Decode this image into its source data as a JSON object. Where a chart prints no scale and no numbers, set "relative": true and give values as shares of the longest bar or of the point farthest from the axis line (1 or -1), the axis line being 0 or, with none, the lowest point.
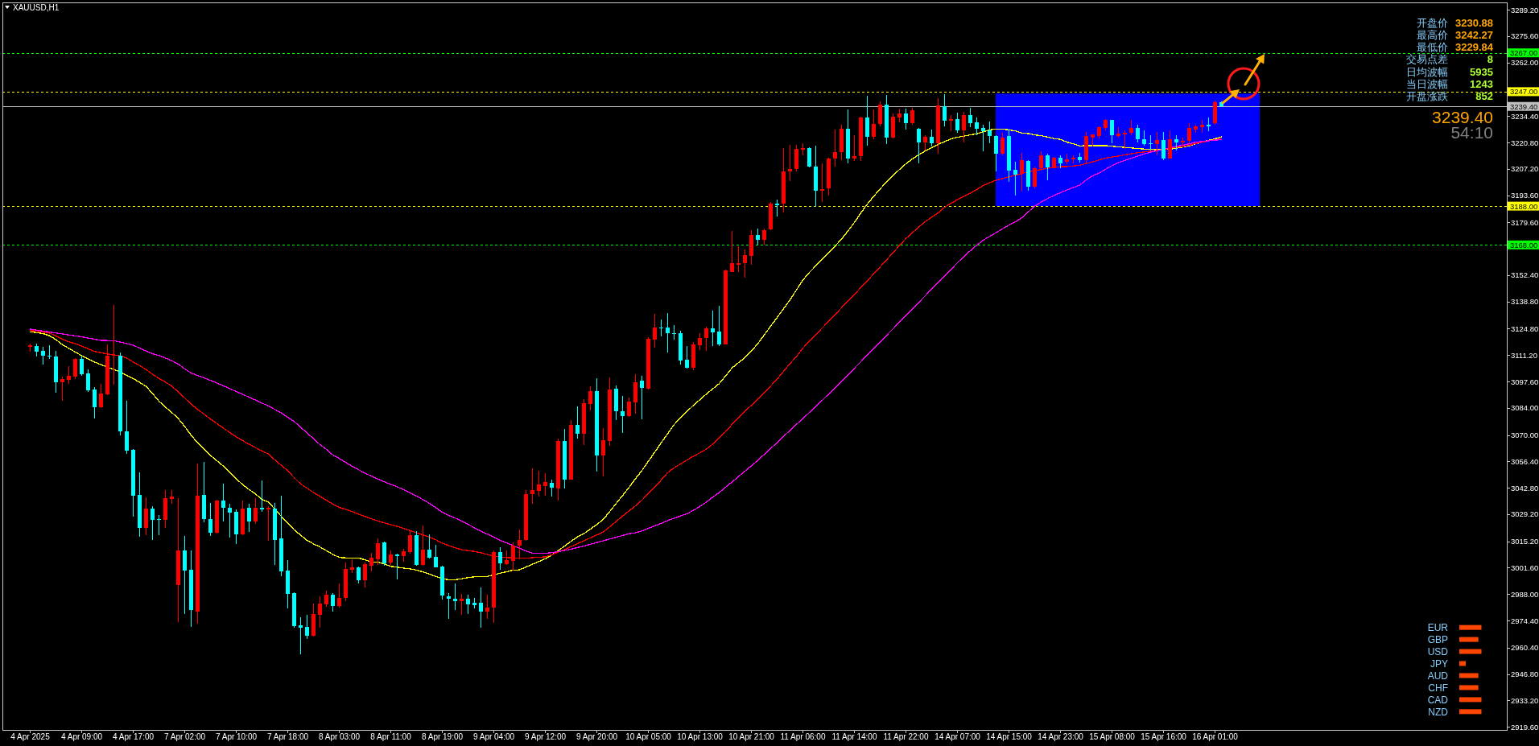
{
  "chart_data": [
    {
      "type": "candlestick",
      "title": "XAUUSD,H1",
      "categories": [
        "4 Apr 2025",
        null,
        null,
        null,
        null,
        null,
        null,
        null,
        "4 Apr 09:00",
        null,
        null,
        null,
        null,
        null,
        null,
        null,
        "4 Apr 17:00",
        null,
        null,
        null,
        null,
        null,
        null,
        null,
        "7 Apr 02:00",
        null,
        null,
        null,
        null,
        null,
        null,
        null,
        "7 Apr 10:00",
        null,
        null,
        null,
        null,
        null,
        null,
        null,
        "7 Apr 18:00",
        null,
        null,
        null,
        null,
        null,
        null,
        null,
        "8 Apr 03:00",
        null,
        null,
        null,
        null,
        null,
        null,
        null,
        "8 Apr 11:00",
        null,
        null,
        null,
        null,
        null,
        null,
        null,
        "8 Apr 19:00",
        null,
        null,
        null,
        null,
        null,
        null,
        null,
        "9 Apr 04:00",
        null,
        null,
        null,
        null,
        null,
        null,
        null,
        "9 Apr 12:00",
        null,
        null,
        null,
        null,
        null,
        null,
        null,
        "9 Apr 20:00",
        null,
        null,
        null,
        null,
        null,
        null,
        null,
        "10 Apr 05:00",
        null,
        null,
        null,
        null,
        null,
        null,
        null,
        "10 Apr 13:00",
        null,
        null,
        null,
        null,
        null,
        null,
        null,
        "10 Apr 21:00",
        null,
        null,
        null,
        null,
        null,
        null,
        null,
        "11 Apr 06:00",
        null,
        null,
        null,
        null,
        null,
        null,
        null,
        "11 Apr 14:00",
        null,
        null,
        null,
        null,
        null,
        null,
        null,
        "11 Apr 22:00",
        null,
        null,
        null,
        null,
        null,
        null,
        null,
        "14 Apr 07:00",
        null,
        null,
        null,
        null,
        null,
        null,
        null,
        "14 Apr 15:00",
        null,
        null,
        null,
        null,
        null,
        null,
        null,
        "14 Apr 23:00",
        null,
        null,
        null,
        null,
        null,
        null,
        null,
        "15 Apr 08:00",
        null,
        null,
        null,
        null,
        null,
        null,
        null,
        "15 Apr 16:00",
        null,
        null,
        null,
        null,
        null,
        null,
        null,
        "16 Apr 01:00",
        null
      ],
      "ohlc": [
        [
          3115.5,
          3117.2,
          3112.8,
          3116.3
        ],
        [
          3116.0,
          3117.0,
          3110.3,
          3113.1
        ],
        [
          3113.5,
          3115.6,
          3106.2,
          3110.8
        ],
        [
          3111.0,
          3116.3,
          3109.4,
          3110.3
        ],
        [
          3110.6,
          3113.4,
          3091.7,
          3097.0
        ],
        [
          3097.0,
          3100.0,
          3087.6,
          3099.0
        ],
        [
          3098.6,
          3105.6,
          3096.5,
          3100.7
        ],
        [
          3100.3,
          3109.6,
          3099.0,
          3109.4
        ],
        [
          3109.4,
          3110.8,
          3100.7,
          3101.5
        ],
        [
          3101.9,
          3104.0,
          3092.4,
          3093.2
        ],
        [
          3093.6,
          3094.9,
          3078.7,
          3084.5
        ],
        [
          3084.2,
          3096.5,
          3083.8,
          3091.6
        ],
        [
          3091.1,
          3116.7,
          3090.7,
          3111.0
        ],
        [
          3111.0,
          3137.0,
          3095.8,
          3111.4
        ],
        [
          3111.0,
          3112.6,
          3070.0,
          3071.8
        ],
        [
          3072.1,
          3087.8,
          3060.1,
          3062.1
        ],
        [
          3062.4,
          3062.6,
          3027.9,
          3038.9
        ],
        [
          3039.3,
          3050.9,
          3017.5,
          3022.3
        ],
        [
          3022.3,
          3037.8,
          3018.2,
          3031.9
        ],
        [
          3031.9,
          3033.5,
          3016.1,
          3026.1
        ],
        [
          3026.5,
          3028.6,
          3018.2,
          3026.2
        ],
        [
          3026.1,
          3041.8,
          3022.3,
          3037.3
        ],
        [
          3037.0,
          3041.8,
          3034.5,
          3038.1
        ],
        [
          2992.7,
          3037.3,
          2973.6,
          3010.7
        ],
        [
          3010.7,
          3017.8,
          2977.7,
          3000.1
        ],
        [
          3000.4,
          3010.3,
          2971.2,
          2979.8
        ],
        [
          2979.0,
          3055.5,
          2972.6,
          3038.9
        ],
        [
          3039.3,
          3056.3,
          3025.0,
          3026.5
        ],
        [
          3026.5,
          3034.8,
          3018.0,
          3019.6
        ],
        [
          3019.6,
          3036.6,
          3019.4,
          3036.4
        ],
        [
          3036.4,
          3045.1,
          3025.4,
          3032.3
        ],
        [
          3032.3,
          3034.5,
          3017.1,
          3029.8
        ],
        [
          3030.6,
          3031.6,
          3013.8,
          3019.0
        ],
        [
          3019.0,
          3036.4,
          3018.2,
          3031.9
        ],
        [
          3032.3,
          3034.4,
          3019.9,
          3025.4
        ],
        [
          3025.4,
          3037.3,
          3024.4,
          3032.3
        ],
        [
          3032.3,
          3046.8,
          3030.6,
          3031.6
        ],
        [
          3031.6,
          3033.5,
          3015.5,
          3032.3
        ],
        [
          3032.0,
          3034.8,
          3003.0,
          3015.9
        ],
        [
          3016.6,
          3038.9,
          2997.1,
          2999.7
        ],
        [
          3000.0,
          3005.4,
          2980.6,
          2988.1
        ],
        [
          2988.5,
          2988.9,
          2970.6,
          2971.5
        ],
        [
          2971.9,
          2976.1,
          2957.0,
          2970.8
        ],
        [
          2970.9,
          2977.5,
          2965.0,
          2966.4
        ],
        [
          2966.4,
          2983.0,
          2966.1,
          2977.6
        ],
        [
          2977.3,
          2986.7,
          2970.8,
          2983.0
        ],
        [
          2982.7,
          2989.6,
          2981.3,
          2987.5
        ],
        [
          2987.5,
          2988.5,
          2979.1,
          2981.9
        ],
        [
          2981.9,
          2993.3,
          2980.9,
          2986.2
        ],
        [
          2986.0,
          3004.1,
          2984.4,
          3000.9
        ],
        [
          3000.5,
          3005.8,
          2998.9,
          3001.6
        ],
        [
          3002.0,
          3002.2,
          2993.6,
          2995.1
        ],
        [
          2995.1,
          3004.1,
          2991.6,
          3003.4
        ],
        [
          3002.6,
          3009.2,
          2999.9,
          3006.7
        ],
        [
          3005.8,
          3016.8,
          3003.0,
          3014.3
        ],
        [
          3014.8,
          3015.2,
          3002.7,
          3003.7
        ],
        [
          3004.4,
          3010.3,
          3003.0,
          3008.3
        ],
        [
          3008.3,
          3008.8,
          2995.7,
          3007.6
        ],
        [
          3007.6,
          3011.3,
          3004.8,
          3009.9
        ],
        [
          3009.7,
          3020.6,
          3009.0,
          3018.2
        ],
        [
          3018.2,
          3020.3,
          3002.8,
          3003.0
        ],
        [
          3003.0,
          3023.5,
          3002.8,
          3011.0
        ],
        [
          3011.0,
          3018.9,
          3006.5,
          3006.7
        ],
        [
          3007.0,
          3013.4,
          3001.6,
          3001.9
        ],
        [
          3002.3,
          3002.5,
          2985.0,
          2987.1
        ],
        [
          2986.7,
          2988.5,
          2975.4,
          2985.8
        ],
        [
          2985.8,
          2993.3,
          2979.8,
          2984.4
        ],
        [
          2984.4,
          2988.2,
          2977.5,
          2985.8
        ],
        [
          2985.8,
          2987.5,
          2977.7,
          2982.7
        ],
        [
          2983.7,
          2986.2,
          2980.6,
          2982.3
        ],
        [
          2983.4,
          2991.6,
          2970.8,
          2979.1
        ],
        [
          2979.1,
          2987.8,
          2975.4,
          2981.2
        ],
        [
          2980.9,
          3010.6,
          2973.3,
          3009.5
        ],
        [
          3009.5,
          3012.0,
          3000.5,
          3003.7
        ],
        [
          3003.4,
          3010.3,
          3003.0,
          3005.4
        ],
        [
          3005.1,
          3014.8,
          3000.3,
          3012.9
        ],
        [
          3013.1,
          3021.3,
          3006.1,
          3016.1
        ],
        [
          3016.1,
          3041.7,
          3015.4,
          3039.6
        ],
        [
          3039.4,
          3053.0,
          3034.5,
          3041.7
        ],
        [
          3041.2,
          3051.5,
          3038.2,
          3044.5
        ],
        [
          3043.8,
          3050.2,
          3038.6,
          3045.6
        ],
        [
          3045.3,
          3047.2,
          3038.2,
          3042.8
        ],
        [
          3042.6,
          3068.3,
          3036.1,
          3066.8
        ],
        [
          3066.8,
          3073.2,
          3042.6,
          3047.1
        ],
        [
          3047.1,
          3077.9,
          3046.9,
          3075.4
        ],
        [
          3075.2,
          3084.9,
          3068.3,
          3070.5
        ],
        [
          3070.5,
          3088.3,
          3065.0,
          3086.5
        ],
        [
          3086.1,
          3095.2,
          3082.7,
          3092.7
        ],
        [
          3092.7,
          3099.4,
          3051.2,
          3059.4
        ],
        [
          3059.4,
          3073.5,
          3048.6,
          3067.5
        ],
        [
          3067.1,
          3099.8,
          3064.3,
          3093.5
        ],
        [
          3093.8,
          3095.7,
          3077.9,
          3082.4
        ],
        [
          3082.4,
          3090.2,
          3071.2,
          3079.8
        ],
        [
          3079.8,
          3089.3,
          3079.4,
          3087.1
        ],
        [
          3086.8,
          3101.3,
          3080.9,
          3097.2
        ],
        [
          3097.9,
          3100.6,
          3078.3,
          3094.2
        ],
        [
          3093.9,
          3120.4,
          3093.5,
          3119.7
        ],
        [
          3119.1,
          3132.3,
          3115.2,
          3125.3
        ],
        [
          3125.6,
          3129.5,
          3120.9,
          3124.9
        ],
        [
          3125.3,
          3132.7,
          3112.7,
          3122.4
        ],
        [
          3122.7,
          3126.5,
          3119.1,
          3121.9
        ],
        [
          3122.7,
          3123.8,
          3106.5,
          3108.6
        ],
        [
          3109.0,
          3116.0,
          3104.3,
          3104.6
        ],
        [
          3104.6,
          3117.9,
          3103.4,
          3116.9
        ],
        [
          3116.4,
          3122.4,
          3113.9,
          3120.1
        ],
        [
          3120.1,
          3125.8,
          3113.2,
          3125.0
        ],
        [
          3124.9,
          3134.2,
          3116.0,
          3123.1
        ],
        [
          3123.4,
          3136.7,
          3116.0,
          3116.7
        ],
        [
          3116.9,
          3155.4,
          3116.7,
          3155.0
        ],
        [
          3154.2,
          3175.3,
          3154.0,
          3158.4
        ],
        [
          3157.9,
          3167.5,
          3153.9,
          3158.7
        ],
        [
          3158.4,
          3165.8,
          3151.3,
          3162.8
        ],
        [
          3162.4,
          3175.4,
          3157.9,
          3173.2
        ],
        [
          3173.2,
          3176.4,
          3168.0,
          3170.5
        ],
        [
          3170.5,
          3176.4,
          3168.3,
          3175.7
        ],
        [
          3176.0,
          3190.1,
          3175.7,
          3189.3
        ],
        [
          3189.3,
          3191.5,
          3182.7,
          3188.3
        ],
        [
          3189.1,
          3217.9,
          3184.8,
          3206.0
        ],
        [
          3205.8,
          3219.6,
          3200.9,
          3207.2
        ],
        [
          3207.0,
          3219.7,
          3205.8,
          3217.5
        ],
        [
          3217.2,
          3220.3,
          3214.0,
          3217.9
        ],
        [
          3217.9,
          3218.5,
          3207.8,
          3208.2
        ],
        [
          3208.5,
          3219.3,
          3187.5,
          3195.8
        ],
        [
          3195.8,
          3209.9,
          3190.3,
          3196.8
        ],
        [
          3197.1,
          3212.9,
          3193.6,
          3212.7
        ],
        [
          3212.4,
          3227.6,
          3208.2,
          3215.8
        ],
        [
          3215.7,
          3229.9,
          3211.6,
          3227.8
        ],
        [
          3227.8,
          3237.8,
          3209.9,
          3212.4
        ],
        [
          3212.7,
          3224.7,
          3211.3,
          3213.8
        ],
        [
          3213.6,
          3234.1,
          3211.3,
          3233.7
        ],
        [
          3233.7,
          3244.7,
          3219.3,
          3223.7
        ],
        [
          3223.7,
          3237.8,
          3222.6,
          3230.3
        ],
        [
          3230.3,
          3241.9,
          3229.2,
          3240.3
        ],
        [
          3240.3,
          3245.4,
          3219.8,
          3223.3
        ],
        [
          3223.3,
          3235.9,
          3223.0,
          3234.1
        ],
        [
          3233.8,
          3238.2,
          3231.0,
          3235.9
        ],
        [
          3235.9,
          3238.2,
          3227.4,
          3230.6
        ],
        [
          3230.6,
          3238.5,
          3229.9,
          3237.5
        ],
        [
          3227.9,
          3228.1,
          3209.9,
          3221.0
        ],
        [
          3221.0,
          3224.7,
          3216.8,
          3223.7
        ],
        [
          3223.7,
          3227.6,
          3218.9,
          3220.5
        ],
        [
          3220.5,
          3243.7,
          3215.1,
          3240.0
        ],
        [
          3239.6,
          3245.8,
          3229.2,
          3232.0
        ],
        [
          3232.0,
          3234.8,
          3226.8,
          3232.7
        ],
        [
          3232.7,
          3236.1,
          3225.8,
          3227.2
        ],
        [
          3227.2,
          3236.4,
          3221.0,
          3234.8
        ],
        [
          3234.8,
          3238.5,
          3228.5,
          3230.9
        ],
        [
          3231.3,
          3233.7,
          3224.4,
          3227.9
        ],
        [
          3228.1,
          3229.9,
          3216.4,
          3226.7
        ],
        [
          3227.2,
          3231.7,
          3220.5,
          3224.0
        ],
        [
          3224.0,
          3224.7,
          3206.0,
          3215.1
        ],
        [
          3215.1,
          3225.8,
          3214.0,
          3223.4
        ],
        [
          3224.0,
          3227.9,
          3200.6,
          3206.4
        ],
        [
          3206.9,
          3211.0,
          3193.6,
          3204.4
        ],
        [
          3204.6,
          3215.4,
          3195.4,
          3211.6
        ],
        [
          3211.3,
          3211.6,
          3196.1,
          3197.8
        ],
        [
          3197.8,
          3208.5,
          3197.2,
          3207.7
        ],
        [
          3207.4,
          3216.4,
          3206.4,
          3214.3
        ],
        [
          3214.3,
          3215.0,
          3201.2,
          3207.8
        ],
        [
          3207.6,
          3213.3,
          3207.4,
          3213.1
        ],
        [
          3213.1,
          3214.0,
          3207.4,
          3210.2
        ],
        [
          3210.8,
          3215.2,
          3209.5,
          3212.0
        ],
        [
          3212.0,
          3214.3,
          3209.9,
          3212.8
        ],
        [
          3213.2,
          3215.4,
          3210.6,
          3211.8
        ],
        [
          3211.8,
          3226.1,
          3209.5,
          3224.0
        ],
        [
          3223.4,
          3225.1,
          3218.6,
          3224.8
        ],
        [
          3224.0,
          3229.2,
          3223.0,
          3228.6
        ],
        [
          3228.3,
          3232.7,
          3227.2,
          3232.3
        ],
        [
          3232.3,
          3232.5,
          3220.5,
          3224.4
        ],
        [
          3224.1,
          3228.8,
          3223.3,
          3225.5
        ],
        [
          3225.1,
          3226.9,
          3217.5,
          3225.8
        ],
        [
          3225.8,
          3232.3,
          3224.4,
          3228.1
        ],
        [
          3228.1,
          3229.9,
          3221.0,
          3222.3
        ],
        [
          3222.6,
          3227.2,
          3219.2,
          3220.0
        ],
        [
          3220.5,
          3224.4,
          3216.5,
          3219.8
        ],
        [
          3219.8,
          3226.2,
          3214.1,
          3221.9
        ],
        [
          3221.9,
          3226.3,
          3211.6,
          3212.7
        ],
        [
          3212.7,
          3227.2,
          3212.5,
          3222.6
        ],
        [
          3222.6,
          3224.4,
          3216.8,
          3220.9
        ],
        [
          3220.9,
          3223.3,
          3219.2,
          3221.6
        ],
        [
          3221.6,
          3230.9,
          3220.3,
          3228.1
        ],
        [
          3227.6,
          3229.9,
          3225.8,
          3229.2
        ],
        [
          3228.8,
          3232.3,
          3225.8,
          3229.9
        ],
        [
          3229.9,
          3233.8,
          3226.5,
          3229.2
        ],
        [
          3230.9,
          3242.3,
          3229.8,
          3241.6
        ],
        [
          3241.6,
          3241.9,
          3238.9,
          3239.4
        ]
      ],
      "colors": [
        "#ff0000",
        "#00ffff",
        "#00ffff",
        "#00ffff",
        "#00ffff",
        "#ff0000",
        "#ff0000",
        "#ff0000",
        "#00ffff",
        "#00ffff",
        "#00ffff",
        "#ff0000",
        "#ff0000",
        "#ff0000",
        "#00ffff",
        "#00ffff",
        "#00ffff",
        "#00ffff",
        "#ff0000",
        "#00ffff",
        "#00ffff",
        "#ff0000",
        "#ff0000",
        "#ff0000",
        "#00ffff",
        "#00ffff",
        "#ff0000",
        "#00ffff",
        "#00ffff",
        "#ff0000",
        "#00ffff",
        "#00ffff",
        "#00ffff",
        "#ff0000",
        "#00ffff",
        "#ff0000",
        "#00ffff",
        "#ff0000",
        "#00ffff",
        "#00ffff",
        "#00ffff",
        "#00ffff",
        "#00ffff",
        "#00ffff",
        "#ff0000",
        "#ff0000",
        "#ff0000",
        "#00ffff",
        "#ff0000",
        "#ff0000",
        "#ff0000",
        "#00ffff",
        "#ff0000",
        "#ff0000",
        "#ff0000",
        "#00ffff",
        "#ff0000",
        "#00ffff",
        "#ff0000",
        "#ff0000",
        "#00ffff",
        "#ff0000",
        "#00ffff",
        "#00ffff",
        "#00ffff",
        "#00ffff",
        "#00ffff",
        "#ff0000",
        "#00ffff",
        "#00ffff",
        "#00ffff",
        "#ff0000",
        "#ff0000",
        "#00ffff",
        "#ff0000",
        "#ff0000",
        "#ff0000",
        "#ff0000",
        "#ff0000",
        "#ff0000",
        "#ff0000",
        "#00ffff",
        "#ff0000",
        "#00ffff",
        "#ff0000",
        "#00ffff",
        "#ff0000",
        "#ff0000",
        "#00ffff",
        "#ff0000",
        "#ff0000",
        "#00ffff",
        "#00ffff",
        "#ff0000",
        "#ff0000",
        "#00ffff",
        "#ff0000",
        "#ff0000",
        "#00ffff",
        "#00ffff",
        "#00ffff",
        "#00ffff",
        "#00ffff",
        "#ff0000",
        "#ff0000",
        "#ff0000",
        "#00ffff",
        "#00ffff",
        "#ff0000",
        "#ff0000",
        "#ff0000",
        "#ff0000",
        "#ff0000",
        "#00ffff",
        "#ff0000",
        "#ff0000",
        "#00ffff",
        "#ff0000",
        "#ff0000",
        "#ff0000",
        "#ff0000",
        "#00ffff",
        "#00ffff",
        "#ff0000",
        "#ff0000",
        "#ff0000",
        "#ff0000",
        "#00ffff",
        "#ff0000",
        "#ff0000",
        "#00ffff",
        "#ff0000",
        "#ff0000",
        "#00ffff",
        "#ff0000",
        "#ff0000",
        "#00ffff",
        "#ff0000",
        "#00ffff",
        "#ff0000",
        "#00ffff",
        "#ff0000",
        "#00ffff",
        "#ff0000",
        "#00ffff",
        "#ff0000",
        "#00ffff",
        "#00ffff",
        "#00ffff",
        "#00ffff",
        "#00ffff",
        "#ff0000",
        "#00ffff",
        "#00ffff",
        "#ff0000",
        "#00ffff",
        "#ff0000",
        "#ff0000",
        "#00ffff",
        "#ff0000",
        "#00ffff",
        "#ff0000",
        "#ff0000",
        "#00ffff",
        "#ff0000",
        "#ff0000",
        "#ff0000",
        "#ff0000",
        "#00ffff",
        "#ff0000",
        "#ff0000",
        "#ff0000",
        "#00ffff",
        "#00ffff",
        "#00ffff",
        "#ff0000",
        "#00ffff",
        "#ff0000",
        "#00ffff",
        "#ff0000",
        "#ff0000",
        "#ff0000",
        "#ff0000",
        "#00ffff",
        "#ff0000",
        "#00ffff"
      ],
      "series": [
        {
          "type": "line",
          "color": "#ffff00",
          "values": [
            3123.2,
            3122.8,
            3122.3,
            3121.2,
            3119.2,
            3116.6,
            3114.7,
            3112.8,
            3110.9,
            3109.3,
            3107.6,
            3106.3,
            3105.0,
            3103.8,
            3102.4,
            3100.8,
            3099.1,
            3097.1,
            3095.1,
            3091.4,
            3087.4,
            3084.4,
            3081.6,
            3078.5,
            3074.4,
            3069.9,
            3066.0,
            3062.7,
            3059.5,
            3056.7,
            3054.0,
            3050.8,
            3047.5,
            3044.4,
            3041.9,
            3039.6,
            3036.8,
            3035.4,
            3031.8,
            3028.1,
            3024.7,
            3021.1,
            3018.4,
            3015.7,
            3013.9,
            3012.3,
            3010.4,
            3008.5,
            3006.9,
            3006.7,
            3006.7,
            3006.7,
            3005.6,
            3004.7,
            3004.5,
            3003.6,
            3002.3,
            3001.9,
            3001.4,
            3001.0,
            3000.4,
            2999.4,
            2998.3,
            2997.1,
            2995.9,
            2995.4,
            2995.4,
            2995.9,
            2996.5,
            2996.9,
            2997.0,
            2997.1,
            2997.9,
            2998.8,
            2999.5,
            3000.4,
            3000.5,
            3002.0,
            3003.4,
            3004.8,
            3006.2,
            3008.2,
            3010.4,
            3012.8,
            3015.2,
            3017.5,
            3019.2,
            3021.5,
            3023.9,
            3026.5,
            3030.6,
            3034.7,
            3038.8,
            3043.0,
            3047.5,
            3051.7,
            3056.5,
            3061.2,
            3066.0,
            3070.7,
            3075.4,
            3078.9,
            3082.2,
            3085.3,
            3088.2,
            3091.1,
            3093.8,
            3096.5,
            3100.5,
            3104.6,
            3107.3,
            3109.9,
            3113.3,
            3117.1,
            3121.6,
            3126.2,
            3130.6,
            3135.1,
            3139.7,
            3144.8,
            3149.9,
            3153.8,
            3157.2,
            3160.6,
            3164.0,
            3167.4,
            3171.0,
            3175.2,
            3179.6,
            3184.5,
            3189.0,
            3193.1,
            3196.9,
            3200.5,
            3203.8,
            3206.9,
            3209.8,
            3212.3,
            3214.5,
            3216.4,
            3218.1,
            3219.8,
            3221.2,
            3222.7,
            3223.5,
            3224.1,
            3224.7,
            3225.3,
            3226.3,
            3227.3,
            3227.8,
            3227.7,
            3227.3,
            3226.7,
            3225.7,
            3225.4,
            3224.7,
            3224.3,
            3223.6,
            3222.8,
            3222.4,
            3221.0,
            3220.1,
            3219.0,
            3219.2,
            3219.2,
            3219.2,
            3219.2,
            3218.9,
            3218.5,
            3218.3,
            3218.0,
            3217.7,
            3217.4,
            3217.2,
            3217.1,
            3217.2,
            3217.3,
            3217.9,
            3218.4,
            3219.1,
            3220.1,
            3221.1,
            3221.9,
            3222.7,
            3223.7
          ]
        },
        {
          "type": "line",
          "color": "#ff0000",
          "values": [
            3123.9,
            3123.5,
            3123.0,
            3122.6,
            3121.0,
            3119.4,
            3118.1,
            3117.1,
            3115.9,
            3114.4,
            3113.1,
            3112.4,
            3111.8,
            3111.3,
            3110.9,
            3109.6,
            3107.6,
            3105.8,
            3103.8,
            3101.3,
            3099.2,
            3097.3,
            3095.2,
            3092.2,
            3089.1,
            3085.9,
            3083.2,
            3080.8,
            3078.2,
            3075.9,
            3073.6,
            3071.3,
            3069.1,
            3067.1,
            3065.2,
            3063.5,
            3061.8,
            3060.2,
            3057.2,
            3054.4,
            3051.6,
            3048.0,
            3044.8,
            3042.6,
            3040.4,
            3038.4,
            3036.4,
            3034.4,
            3032.7,
            3031.6,
            3030.5,
            3029.2,
            3028.0,
            3026.8,
            3025.7,
            3024.7,
            3023.8,
            3022.9,
            3021.9,
            3020.7,
            3019.6,
            3018.5,
            3017.4,
            3016.0,
            3014.3,
            3013.0,
            3011.9,
            3010.9,
            3010.4,
            3010.0,
            3009.3,
            3008.4,
            3007.6,
            3007.1,
            3006.8,
            3006.7,
            3006.6,
            3006.5,
            3006.8,
            3007.0,
            3007.2,
            3008.3,
            3009.6,
            3011.0,
            3012.5,
            3014.0,
            3015.5,
            3017.0,
            3018.5,
            3020.0,
            3022.7,
            3025.5,
            3028.2,
            3030.9,
            3033.5,
            3036.4,
            3039.9,
            3043.1,
            3046.8,
            3050.6,
            3053.1,
            3055.1,
            3057.1,
            3059.1,
            3060.8,
            3062.7,
            3065.3,
            3068.5,
            3071.7,
            3075.5,
            3079.1,
            3082.3,
            3085.3,
            3088.4,
            3091.7,
            3095.3,
            3098.9,
            3102.8,
            3106.8,
            3110.5,
            3114.8,
            3118.3,
            3121.7,
            3125.2,
            3128.6,
            3132.1,
            3135.6,
            3139.0,
            3142.5,
            3146.0,
            3149.5,
            3153.1,
            3156.7,
            3160.3,
            3164.0,
            3167.7,
            3171.3,
            3174.3,
            3177.2,
            3180.0,
            3182.3,
            3184.5,
            3187.4,
            3189.5,
            3191.3,
            3193.0,
            3194.7,
            3196.6,
            3198.6,
            3200.0,
            3201.4,
            3202.2,
            3203.1,
            3203.9,
            3204.8,
            3205.7,
            3206.3,
            3206.9,
            3207.5,
            3208.0,
            3208.3,
            3208.4,
            3208.7,
            3209.1,
            3209.9,
            3210.8,
            3211.8,
            3212.8,
            3213.3,
            3213.8,
            3214.4,
            3215.0,
            3215.5,
            3215.9,
            3216.3,
            3216.7,
            3217.2,
            3217.8,
            3218.3,
            3218.7,
            3219.4,
            3220.3,
            3220.9,
            3221.6,
            3222.2,
            3222.8
          ]
        },
        {
          "type": "line",
          "color": "#ff00ff",
          "values": [
            3124.6,
            3124.1,
            3123.6,
            3123.1,
            3122.6,
            3122.1,
            3121.6,
            3121.1,
            3120.6,
            3120.0,
            3119.4,
            3118.8,
            3118.7,
            3118.6,
            3117.9,
            3117.1,
            3116.3,
            3114.8,
            3113.3,
            3111.9,
            3111.0,
            3109.7,
            3108.3,
            3106.6,
            3104.1,
            3101.9,
            3100.7,
            3099.5,
            3098.2,
            3096.8,
            3095.4,
            3093.9,
            3092.4,
            3091.0,
            3089.5,
            3088.0,
            3086.5,
            3084.9,
            3083.2,
            3081.4,
            3079.1,
            3077.0,
            3074.0,
            3071.1,
            3068.1,
            3065.1,
            3062.6,
            3059.7,
            3057.9,
            3055.9,
            3053.9,
            3052.1,
            3050.4,
            3048.8,
            3047.3,
            3045.9,
            3044.6,
            3043.3,
            3041.9,
            3040.2,
            3038.6,
            3036.7,
            3034.8,
            3032.6,
            3030.1,
            3028.6,
            3027.2,
            3025.6,
            3023.9,
            3022.2,
            3020.5,
            3018.9,
            3017.4,
            3015.7,
            3014.4,
            3013.0,
            3011.6,
            3010.2,
            3009.1,
            3009.0,
            3009.0,
            3009.4,
            3009.9,
            3010.5,
            3011.2,
            3012.0,
            3012.8,
            3013.7,
            3014.6,
            3015.5,
            3016.4,
            3017.3,
            3018.2,
            3019.1,
            3019.6,
            3020.6,
            3021.9,
            3023.2,
            3024.5,
            3025.9,
            3027.1,
            3028.3,
            3029.4,
            3031.2,
            3033.2,
            3035.4,
            3038.0,
            3040.3,
            3043.1,
            3045.8,
            3048.6,
            3051.4,
            3054.1,
            3057.0,
            3060.0,
            3063.1,
            3066.1,
            3069.3,
            3072.4,
            3075.5,
            3078.5,
            3081.6,
            3084.7,
            3087.9,
            3091.1,
            3094.4,
            3097.7,
            3101.0,
            3104.4,
            3107.8,
            3111.2,
            3114.6,
            3118.0,
            3121.4,
            3124.8,
            3128.2,
            3131.6,
            3135.0,
            3138.4,
            3141.8,
            3145.2,
            3148.6,
            3152.0,
            3155.4,
            3158.8,
            3162.0,
            3165.0,
            3167.8,
            3170.4,
            3172.4,
            3174.3,
            3176.3,
            3178.2,
            3179.9,
            3182.0,
            3185.0,
            3188.0,
            3190.1,
            3191.9,
            3193.5,
            3194.9,
            3196.3,
            3197.6,
            3198.8,
            3201.5,
            3203.7,
            3205.0,
            3207.0,
            3208.9,
            3210.4,
            3211.5,
            3212.7,
            3213.8,
            3214.9,
            3215.8,
            3216.6,
            3217.4,
            3218.1,
            3218.8,
            3219.4,
            3220.1,
            3221.0,
            3221.3,
            3221.7,
            3222.0,
            3222.3
          ]
        }
      ],
      "ylim": [
        2918,
        3293
      ],
      "yticks": [
        {
          "value": 3289.2,
          "label": "3289.20"
        },
        {
          "value": 3275.6,
          "label": "3275.60"
        },
        {
          "value": 3262,
          "label": "3262.00"
        },
        {
          "value": 3234.4,
          "label": "3234.40"
        },
        {
          "value": 3220.8,
          "label": "3220.80"
        },
        {
          "value": 3207.2,
          "label": "3207.20"
        },
        {
          "value": 3193.6,
          "label": "3193.60"
        },
        {
          "value": 3179.6,
          "label": "3179.60"
        },
        {
          "value": 3152.4,
          "label": "3152.40"
        },
        {
          "value": 3138.8,
          "label": "3138.80"
        },
        {
          "value": 3124.8,
          "label": "3124.80"
        },
        {
          "value": 3111.2,
          "label": "3111.20"
        },
        {
          "value": 3097.6,
          "label": "3097.60"
        },
        {
          "value": 3084,
          "label": "3084.00"
        },
        {
          "value": 3070,
          "label": "3070.00"
        },
        {
          "value": 3056.4,
          "label": "3056.40"
        },
        {
          "value": 3042.8,
          "label": "3042.80"
        },
        {
          "value": 3029.2,
          "label": "3029.20"
        },
        {
          "value": 3015.2,
          "label": "3015.20"
        },
        {
          "value": 3001.6,
          "label": "3001.60"
        },
        {
          "value": 2988,
          "label": "2988.00"
        },
        {
          "value": 2974.4,
          "label": "2974.40"
        },
        {
          "value": 2960.4,
          "label": "2960.40"
        },
        {
          "value": 2946.8,
          "label": "2946.80"
        },
        {
          "value": 2933.2,
          "label": "2933.20"
        },
        {
          "value": 2919.6,
          "label": "2919.60"
        }
      ],
      "ref_lines": [
        {
          "axis": "y",
          "value": 3267,
          "label": "3267.00",
          "color": "#00ff00",
          "line_style": "dashed"
        },
        {
          "axis": "y",
          "value": 3247,
          "label": "3247.00",
          "color": "#ffff00",
          "line_style": "dashed"
        },
        {
          "axis": "y",
          "value": 3239.4,
          "label": "3239.40",
          "color": "#c0c0c0",
          "line_style": "solid"
        },
        {
          "axis": "y",
          "value": 3188,
          "label": "3188.00",
          "color": "#ffff00",
          "line_style": "dashed"
        },
        {
          "axis": "y",
          "value": 3168,
          "label": "3168.00",
          "color": "#00ff00",
          "line_style": "dashed"
        }
      ],
      "bands": [
        {
          "axis": "y",
          "from": 3188,
          "to": 3246,
          "color": "#0000ff"
        }
      ],
      "annotations": [
        "开盘价 3230.88",
        "最高价 3242.27",
        "最低价 3229.84",
        "交易点差 8",
        "日均波幅 5935",
        "当日波幅 1243",
        "开盘涨跌 852",
        "3239.40",
        "54:10"
      ]
    },
    {
      "type": "bar",
      "orientation": "horizontal",
      "relative": true,
      "categories": [
        "EUR",
        "GBP",
        "USD",
        "JPY",
        "AUD",
        "CHF",
        "CAD",
        "NZD"
      ],
      "values": [
        1,
        0.86,
        1,
        0.29,
        0.86,
        0.86,
        1,
        1
      ],
      "color": "#ff4500"
    }
  ]
}
